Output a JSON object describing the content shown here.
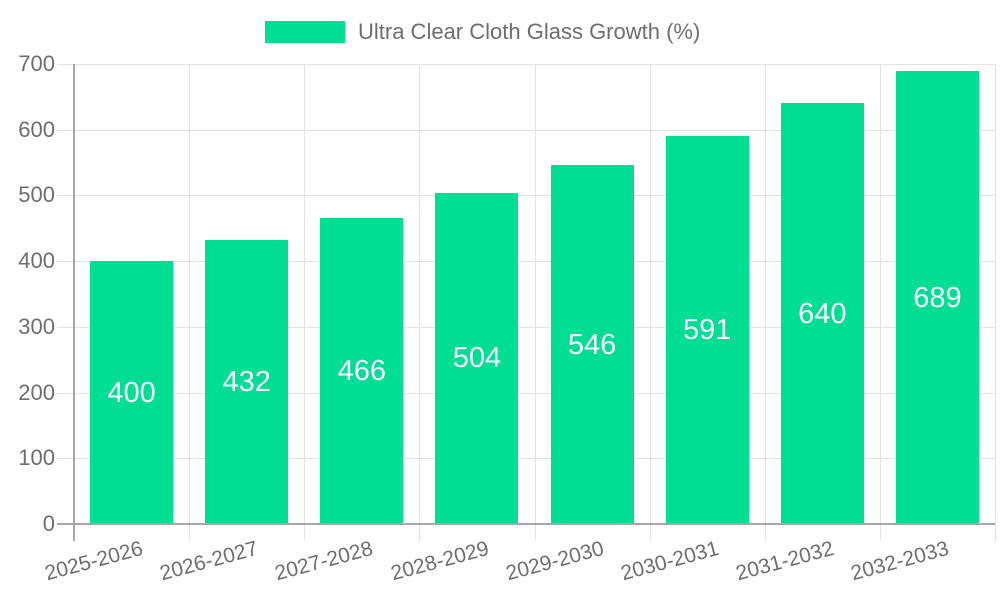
{
  "chart_data": {
    "type": "bar",
    "title": "Ultra Clear Cloth Glass Growth (%)",
    "legend_entries": [
      "Ultra Clear Cloth Glass Growth (%)"
    ],
    "legend_position": "top",
    "categories": [
      "2025-2026",
      "2026-2027",
      "2027-2028",
      "2028-2029",
      "2029-2030",
      "2030-2031",
      "2031-2032",
      "2032-2033"
    ],
    "values": [
      400,
      432,
      466,
      504,
      546,
      591,
      640,
      689
    ],
    "xlabel": "",
    "ylabel": "",
    "ylim": [
      0,
      700
    ],
    "ytick_step": 100,
    "ytick_labels": [
      "0",
      "100",
      "200",
      "300",
      "400",
      "500",
      "600",
      "700"
    ],
    "grid": true,
    "x_label_rotation_deg": -15,
    "bar_labels_inside": true,
    "colors": {
      "bar": "#00DE94",
      "bar_value_label": "#FFFFFF",
      "axis_text": "#6E6E6E",
      "legend_text": "#6E6E6E",
      "grid_line": "#E2E2E2",
      "axis_line": "#A6A6A6",
      "background": "#FFFFFF"
    }
  }
}
